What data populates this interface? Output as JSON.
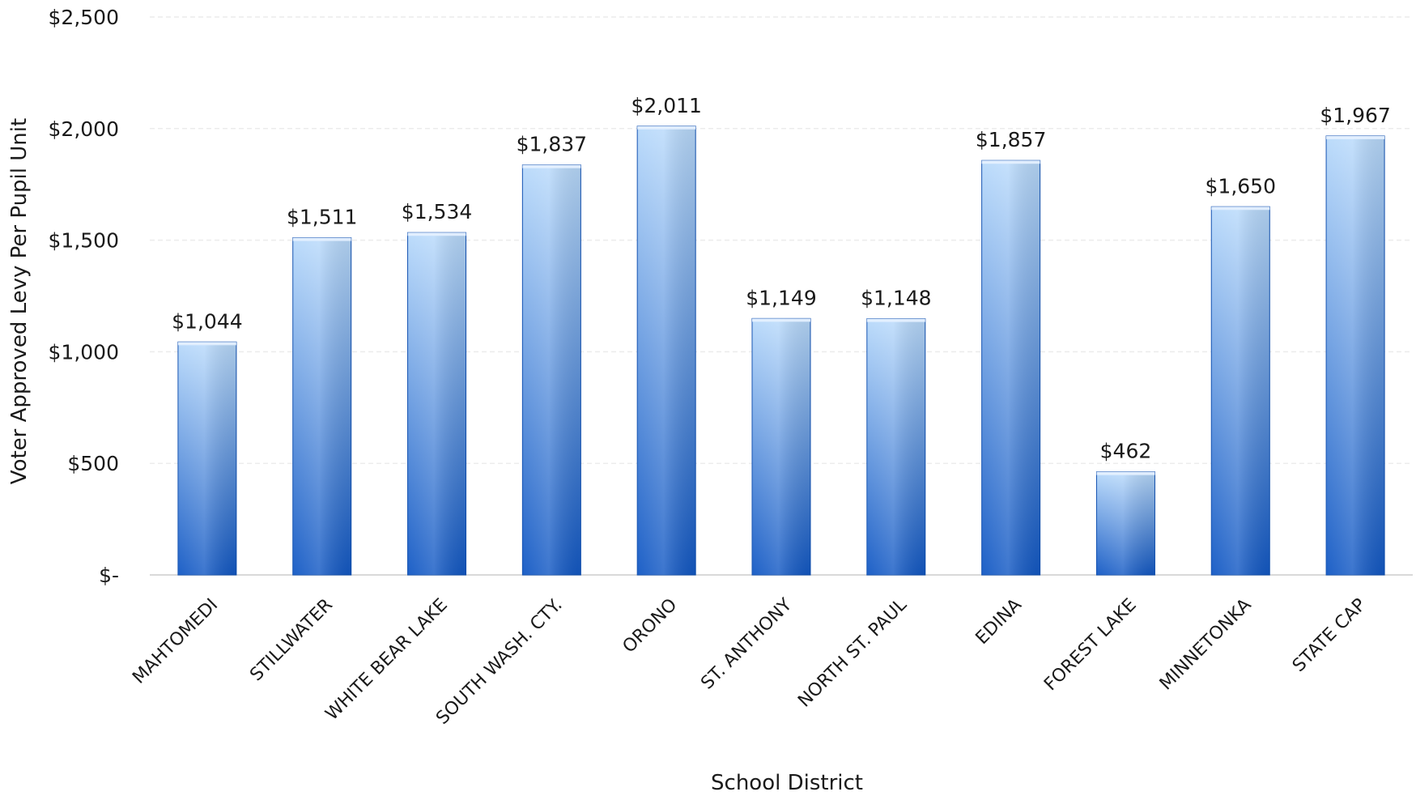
{
  "chart_data": {
    "type": "bar",
    "categories": [
      "MAHTOMEDI",
      "STILLWATER",
      "WHITE BEAR LAKE",
      "SOUTH WASH. CTY.",
      "ORONO",
      "ST. ANTHONY",
      "NORTH ST. PAUL",
      "EDINA",
      "FOREST LAKE",
      "MINNETONKA",
      "STATE CAP"
    ],
    "values": [
      1044,
      1511,
      1534,
      1837,
      2011,
      1149,
      1148,
      1857,
      462,
      1650,
      1967
    ],
    "data_labels": [
      "$1,044",
      "$1,511",
      "$1,534",
      "$1,837",
      "$2,011",
      "$1,149",
      "$1,148",
      "$1,857",
      "$462",
      "$1,650",
      "$1,967"
    ],
    "title": "",
    "xlabel": "School District",
    "ylabel": "Voter Approved Levy Per Pupil Unit",
    "ylim": [
      0,
      2500
    ],
    "yticks": [
      0,
      500,
      1000,
      1500,
      2000,
      2500
    ],
    "ytick_labels": [
      "$-",
      "$500",
      "$1,000",
      "$1,500",
      "$2,000",
      "$2,500"
    ],
    "grid": true,
    "legend": "none",
    "colors": {
      "bar_top": "#b9dafb",
      "bar_bottom": "#1258c4",
      "bar_edge": "#0f4fb0"
    }
  }
}
